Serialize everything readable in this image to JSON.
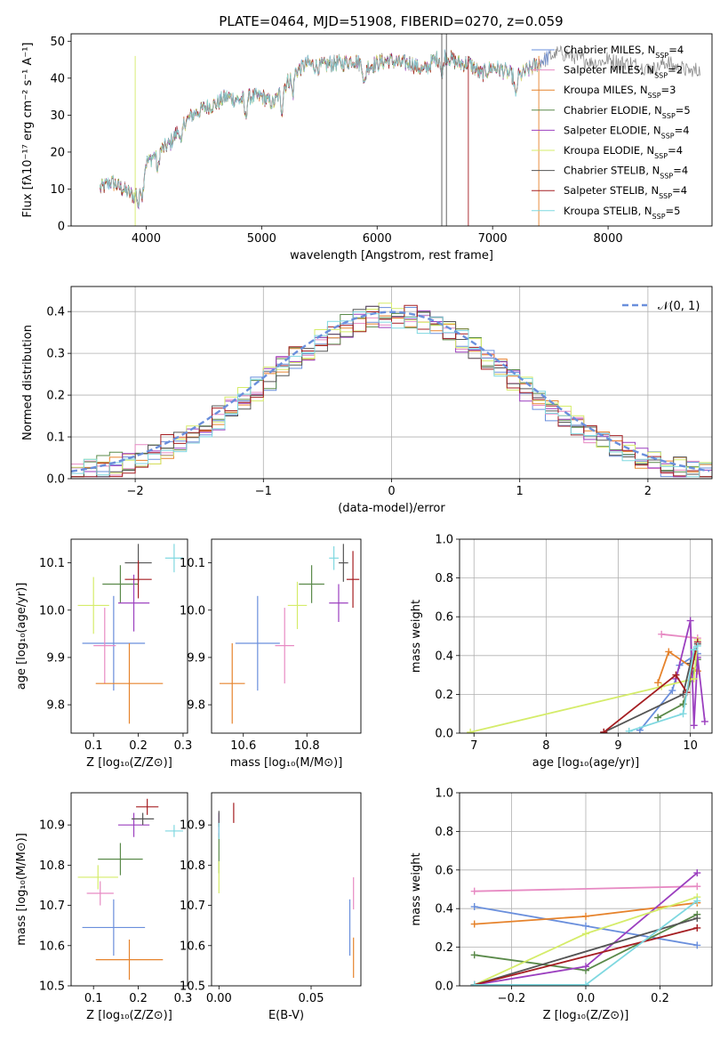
{
  "figure": {
    "colors": [
      "#6a8fdc",
      "#e78ac3",
      "#e6832c",
      "#5a8a4a",
      "#9b3fbf",
      "#d5ec6a",
      "#555555",
      "#a51e22",
      "#7fd8e0"
    ]
  },
  "chart_data": [
    {
      "type": "line",
      "title": "PLATE=0464, MJD=51908, FIBERID=0270, z=0.059",
      "xlabel": "wavelength [Angstrom, rest frame]",
      "ylabel": "Flux [fλ10⁻¹⁷ erg cm⁻² s⁻¹ A⁻¹]",
      "xlim": [
        3350,
        8900
      ],
      "ylim": [
        0,
        52
      ],
      "xticks": [
        4000,
        5000,
        6000,
        7000,
        8000
      ],
      "yticks": [
        0,
        10,
        20,
        30,
        40,
        50
      ],
      "spectrum_anchors_x": [
        3600,
        3700,
        3800,
        3900,
        3950,
        4000,
        4100,
        4200,
        4300,
        4400,
        4500,
        4600,
        4700,
        4800,
        4900,
        5000,
        5100,
        5200,
        5300,
        5400,
        5500,
        5600,
        5700,
        5800,
        5900,
        6000,
        6100,
        6200,
        6300,
        6400,
        6500,
        6600,
        6700,
        6800,
        6900,
        7000,
        7100,
        7200,
        7300,
        7400,
        7500,
        7600,
        7700,
        7800,
        7900,
        8000,
        8100,
        8200,
        8300,
        8400,
        8500,
        8600,
        8700,
        8800
      ],
      "spectrum_anchors_y": [
        10,
        12,
        10,
        8,
        12,
        17,
        20,
        22,
        27,
        30,
        32,
        33,
        35,
        34,
        35,
        35,
        33,
        38,
        42,
        44,
        43,
        44,
        44,
        45,
        43,
        44,
        45,
        44,
        44,
        42,
        45,
        46,
        44,
        44,
        41,
        43,
        42,
        40,
        42,
        44,
        46,
        47,
        46,
        45,
        44,
        45,
        44,
        44,
        43,
        43,
        44,
        43,
        42,
        42
      ],
      "series": [
        {
          "name": "Chabrier MILES, N",
          "sub": "SSP",
          "suffix": "=4"
        },
        {
          "name": "Salpeter MILES, N",
          "sub": "SSP",
          "suffix": "=2"
        },
        {
          "name": "Kroupa MILES, N",
          "sub": "SSP",
          "suffix": "=3"
        },
        {
          "name": "Chabrier ELODIE, N",
          "sub": "SSP",
          "suffix": "=5"
        },
        {
          "name": "Salpeter ELODIE, N",
          "sub": "SSP",
          "suffix": "=4"
        },
        {
          "name": "Kroupa ELODIE, N",
          "sub": "SSP",
          "suffix": "=4"
        },
        {
          "name": "Chabrier STELIB, N",
          "sub": "SSP",
          "suffix": "=4"
        },
        {
          "name": "Salpeter STELIB, N",
          "sub": "SSP",
          "suffix": "=4"
        },
        {
          "name": "Kroupa STELIB, N",
          "sub": "SSP",
          "suffix": "=5"
        }
      ],
      "legend_position": "right"
    },
    {
      "type": "histogram",
      "xlabel": "(data-model)/error",
      "ylabel": "Normed distribution",
      "xlim": [
        -2.5,
        2.5
      ],
      "ylim": [
        0,
        0.46
      ],
      "xticks": [
        -2,
        -1,
        0,
        1,
        2
      ],
      "xtick_labels": [
        "−2",
        "−1",
        "0",
        "1",
        "2"
      ],
      "yticks": [
        0.0,
        0.1,
        0.2,
        0.3,
        0.4
      ],
      "grid": true,
      "bin_width": 0.1,
      "reference_curve": {
        "name": "𝒩(0, 1)",
        "mean": 0,
        "sigma": 1,
        "style": "dashed"
      },
      "legend_position": "top-right"
    },
    {
      "type": "scatter",
      "xlabel": "Z [log₁₀(Z/Z⊙)]",
      "ylabel": "age  [log₁₀(age/yr)]",
      "xlim": [
        0.05,
        0.31
      ],
      "ylim": [
        9.74,
        10.15
      ],
      "xticks": [
        0.1,
        0.2,
        0.3
      ],
      "yticks": [
        9.8,
        9.9,
        10.0,
        10.1
      ],
      "points": [
        {
          "x": 0.145,
          "y": 9.93,
          "xerr": 0.07,
          "yerr": 0.1
        },
        {
          "x": 0.125,
          "y": 9.925,
          "xerr": 0.025,
          "yerr": 0.08
        },
        {
          "x": 0.18,
          "y": 9.845,
          "xerr": 0.075,
          "yerr": 0.085
        },
        {
          "x": 0.16,
          "y": 10.055,
          "xerr": 0.04,
          "yerr": 0.04
        },
        {
          "x": 0.19,
          "y": 10.015,
          "xerr": 0.035,
          "yerr": 0.06
        },
        {
          "x": 0.1,
          "y": 10.01,
          "xerr": 0.035,
          "yerr": 0.06
        },
        {
          "x": 0.2,
          "y": 10.1,
          "xerr": 0.03,
          "yerr": 0.04
        },
        {
          "x": 0.2,
          "y": 10.065,
          "xerr": 0.03,
          "yerr": 0.04
        },
        {
          "x": 0.28,
          "y": 10.11,
          "xerr": 0.02,
          "yerr": 0.03
        }
      ]
    },
    {
      "type": "scatter",
      "xlabel": "mass [log₁₀(M/M⊙)]",
      "ylabel": "",
      "xlim": [
        10.5,
        10.97
      ],
      "ylim": [
        9.74,
        10.15
      ],
      "xticks": [
        10.6,
        10.8
      ],
      "yticks": [
        9.8,
        9.9,
        10.0,
        10.1
      ],
      "points": [
        {
          "x": 10.645,
          "y": 9.93,
          "xerr": 0.07,
          "yerr": 0.1
        },
        {
          "x": 10.73,
          "y": 9.925,
          "xerr": 0.03,
          "yerr": 0.08
        },
        {
          "x": 10.565,
          "y": 9.845,
          "xerr": 0.04,
          "yerr": 0.085
        },
        {
          "x": 10.815,
          "y": 10.055,
          "xerr": 0.04,
          "yerr": 0.04
        },
        {
          "x": 10.9,
          "y": 10.015,
          "xerr": 0.03,
          "yerr": 0.04
        },
        {
          "x": 10.77,
          "y": 10.01,
          "xerr": 0.03,
          "yerr": 0.05
        },
        {
          "x": 10.915,
          "y": 10.1,
          "xerr": 0.015,
          "yerr": 0.04
        },
        {
          "x": 10.945,
          "y": 10.065,
          "xerr": 0.02,
          "yerr": 0.06
        },
        {
          "x": 10.885,
          "y": 10.11,
          "xerr": 0.015,
          "yerr": 0.025
        }
      ]
    },
    {
      "type": "line",
      "xlabel": "age  [log₁₀(age/yr)]",
      "ylabel": "mass weight",
      "xlim": [
        6.8,
        10.3
      ],
      "ylim": [
        0,
        1.0
      ],
      "xticks": [
        7,
        8,
        9,
        10
      ],
      "yticks": [
        0.0,
        0.2,
        0.4,
        0.6,
        0.8,
        1.0
      ],
      "grid": true,
      "series": [
        {
          "x": [
            9.3,
            9.75,
            9.85,
            10.1
          ],
          "y": [
            0.015,
            0.22,
            0.35,
            0.41
          ]
        },
        {
          "x": [
            9.6,
            10.1
          ],
          "y": [
            0.51,
            0.49
          ]
        },
        {
          "x": [
            9.55,
            9.7,
            10.1
          ],
          "y": [
            0.26,
            0.42,
            0.32
          ]
        },
        {
          "x": [
            9.55,
            9.9,
            10.1
          ],
          "y": [
            0.08,
            0.15,
            0.38
          ]
        },
        {
          "x": [
            9.8,
            10.0,
            10.05,
            10.1,
            10.2
          ],
          "y": [
            0.28,
            0.58,
            0.04,
            0.39,
            0.06
          ]
        },
        {
          "x": [
            6.95,
            9.6,
            10.05,
            10.1
          ],
          "y": [
            0.005,
            0.24,
            0.28,
            0.48
          ]
        },
        {
          "x": [
            8.8,
            9.9,
            10.0,
            10.1
          ],
          "y": [
            0.005,
            0.2,
            0.36,
            0.46
          ]
        },
        {
          "x": [
            8.8,
            9.8,
            9.95,
            10.1
          ],
          "y": [
            0.005,
            0.3,
            0.21,
            0.47
          ]
        },
        {
          "x": [
            9.15,
            9.9,
            10.05,
            10.1
          ],
          "y": [
            0.01,
            0.1,
            0.43,
            0.45
          ]
        }
      ]
    },
    {
      "type": "scatter",
      "xlabel": "Z [log₁₀(Z/Z⊙)]",
      "ylabel": "mass [log₁₀(M/M⊙)]",
      "xlim": [
        0.05,
        0.31
      ],
      "ylim": [
        10.5,
        10.98
      ],
      "xticks": [
        0.1,
        0.2,
        0.3
      ],
      "yticks": [
        10.5,
        10.6,
        10.7,
        10.8,
        10.9
      ],
      "points": [
        {
          "x": 0.145,
          "y": 10.645,
          "xerr": 0.07,
          "yerr": 0.07
        },
        {
          "x": 0.115,
          "y": 10.73,
          "xerr": 0.03,
          "yerr": 0.03
        },
        {
          "x": 0.18,
          "y": 10.565,
          "xerr": 0.075,
          "yerr": 0.05
        },
        {
          "x": 0.16,
          "y": 10.815,
          "xerr": 0.05,
          "yerr": 0.04
        },
        {
          "x": 0.19,
          "y": 10.9,
          "xerr": 0.035,
          "yerr": 0.03
        },
        {
          "x": 0.11,
          "y": 10.77,
          "xerr": 0.045,
          "yerr": 0.03
        },
        {
          "x": 0.21,
          "y": 10.915,
          "xerr": 0.025,
          "yerr": 0.015
        },
        {
          "x": 0.22,
          "y": 10.945,
          "xerr": 0.025,
          "yerr": 0.02
        },
        {
          "x": 0.28,
          "y": 10.885,
          "xerr": 0.02,
          "yerr": 0.015
        }
      ]
    },
    {
      "type": "scatter",
      "xlabel": "E(B-V)",
      "ylabel": "",
      "xlim": [
        -0.004,
        0.077
      ],
      "ylim": [
        10.5,
        10.98
      ],
      "xticks": [
        0.0,
        0.05
      ],
      "xtick_labels": [
        "0.00",
        "0.05"
      ],
      "yticks": [
        10.5,
        10.6,
        10.7,
        10.8,
        10.9
      ],
      "points": [
        {
          "x": 0.071,
          "y": 10.645,
          "xerr": 0,
          "yerr": 0.07
        },
        {
          "x": 0.073,
          "y": 10.73,
          "xerr": 0,
          "yerr": 0.04
        },
        {
          "x": 0.073,
          "y": 10.57,
          "xerr": 0,
          "yerr": 0.05
        },
        {
          "x": 0.0,
          "y": 10.83,
          "xerr": 0,
          "yerr": 0.05
        },
        {
          "x": 0.0,
          "y": 10.9,
          "xerr": 0,
          "yerr": 0.03
        },
        {
          "x": 0.0,
          "y": 10.77,
          "xerr": 0,
          "yerr": 0.04
        },
        {
          "x": 0.0,
          "y": 10.915,
          "xerr": 0,
          "yerr": 0.02
        },
        {
          "x": 0.008,
          "y": 10.93,
          "xerr": 0,
          "yerr": 0.025
        },
        {
          "x": 0.0,
          "y": 10.885,
          "xerr": 0,
          "yerr": 0.02
        }
      ]
    },
    {
      "type": "line",
      "xlabel": "Z [log₁₀(Z/Z⊙)]",
      "ylabel": "mass weight",
      "xlim": [
        -0.34,
        0.34
      ],
      "ylim": [
        0,
        1.0
      ],
      "xticks": [
        -0.2,
        0.0,
        0.2
      ],
      "xtick_labels": [
        "−0.2",
        "0.0",
        "0.2"
      ],
      "yticks": [
        0.0,
        0.2,
        0.4,
        0.6,
        0.8,
        1.0
      ],
      "grid": true,
      "series": [
        {
          "x": [
            -0.3,
            0.0,
            0.3
          ],
          "y": [
            0.41,
            0.31,
            0.21
          ]
        },
        {
          "x": [
            -0.3,
            0.3
          ],
          "y": [
            0.49,
            0.515
          ]
        },
        {
          "x": [
            -0.3,
            0.0,
            0.3
          ],
          "y": [
            0.32,
            0.36,
            0.43
          ]
        },
        {
          "x": [
            -0.3,
            0.0,
            0.3
          ],
          "y": [
            0.16,
            0.08,
            0.37
          ]
        },
        {
          "x": [
            -0.3,
            0.0,
            0.3
          ],
          "y": [
            0.005,
            0.1,
            0.585
          ]
        },
        {
          "x": [
            -0.3,
            0.0,
            0.3
          ],
          "y": [
            0.005,
            0.27,
            0.46
          ]
        },
        {
          "x": [
            -0.3,
            0.3
          ],
          "y": [
            0.005,
            0.35
          ]
        },
        {
          "x": [
            -0.3,
            0.3
          ],
          "y": [
            0.005,
            0.3
          ]
        },
        {
          "x": [
            -0.3,
            0.0,
            0.3
          ],
          "y": [
            0.005,
            0.005,
            0.44
          ]
        }
      ]
    }
  ]
}
